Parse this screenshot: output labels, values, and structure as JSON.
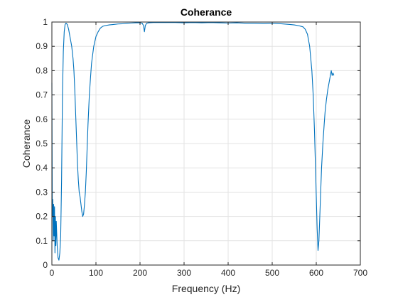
{
  "chart_data": {
    "type": "line",
    "title": "Coherance",
    "xlabel": "Frequency (Hz)",
    "ylabel": "Coherance",
    "xlim": [
      0,
      700
    ],
    "ylim": [
      0,
      1
    ],
    "xticks": [
      0,
      100,
      200,
      300,
      400,
      500,
      600,
      700
    ],
    "yticks": [
      0,
      0.1,
      0.2,
      0.3,
      0.4,
      0.5,
      0.6,
      0.7,
      0.8,
      0.9,
      1
    ],
    "grid": true,
    "series": [
      {
        "color": "#0072BD",
        "x": [
          0,
          1,
          2,
          3,
          4,
          5,
          6,
          7,
          8,
          9,
          10,
          12,
          14,
          16,
          18,
          20,
          22,
          24,
          26,
          28,
          30,
          32,
          35,
          38,
          40,
          42,
          45,
          48,
          50,
          52,
          54,
          56,
          58,
          60,
          62,
          64,
          66,
          68,
          70,
          72,
          74,
          76,
          78,
          80,
          82,
          85,
          88,
          90,
          95,
          100,
          105,
          110,
          115,
          120,
          130,
          140,
          150,
          160,
          170,
          180,
          190,
          200,
          205,
          208,
          210,
          212,
          215,
          220,
          230,
          240,
          260,
          280,
          300,
          320,
          340,
          360,
          380,
          400,
          420,
          440,
          460,
          480,
          500,
          520,
          540,
          550,
          560,
          570,
          575,
          580,
          585,
          590,
          593,
          596,
          599,
          602,
          604,
          606,
          608,
          610,
          612,
          615,
          618,
          620,
          623,
          626,
          629,
          632,
          634,
          636,
          638,
          640
        ],
        "y": [
          0.75,
          0.2,
          0.27,
          0.1,
          0.25,
          0.12,
          0.24,
          0.05,
          0.2,
          0.08,
          0.18,
          0.08,
          0.03,
          0.02,
          0.05,
          0.12,
          0.35,
          0.7,
          0.88,
          0.96,
          0.99,
          0.995,
          0.99,
          0.97,
          0.95,
          0.93,
          0.9,
          0.85,
          0.8,
          0.72,
          0.62,
          0.52,
          0.42,
          0.35,
          0.3,
          0.28,
          0.25,
          0.22,
          0.2,
          0.21,
          0.25,
          0.3,
          0.38,
          0.48,
          0.58,
          0.7,
          0.78,
          0.83,
          0.9,
          0.94,
          0.96,
          0.975,
          0.982,
          0.985,
          0.988,
          0.99,
          0.992,
          0.993,
          0.995,
          0.996,
          0.997,
          0.997,
          0.995,
          0.985,
          0.96,
          0.985,
          0.995,
          0.997,
          0.998,
          0.998,
          0.998,
          0.998,
          0.997,
          0.998,
          0.997,
          0.998,
          0.997,
          0.996,
          0.997,
          0.995,
          0.995,
          0.994,
          0.995,
          0.993,
          0.99,
          0.988,
          0.985,
          0.98,
          0.97,
          0.95,
          0.9,
          0.8,
          0.7,
          0.55,
          0.35,
          0.15,
          0.06,
          0.1,
          0.2,
          0.3,
          0.4,
          0.5,
          0.58,
          0.63,
          0.68,
          0.72,
          0.75,
          0.78,
          0.8,
          0.78,
          0.79,
          0.78
        ]
      }
    ]
  }
}
